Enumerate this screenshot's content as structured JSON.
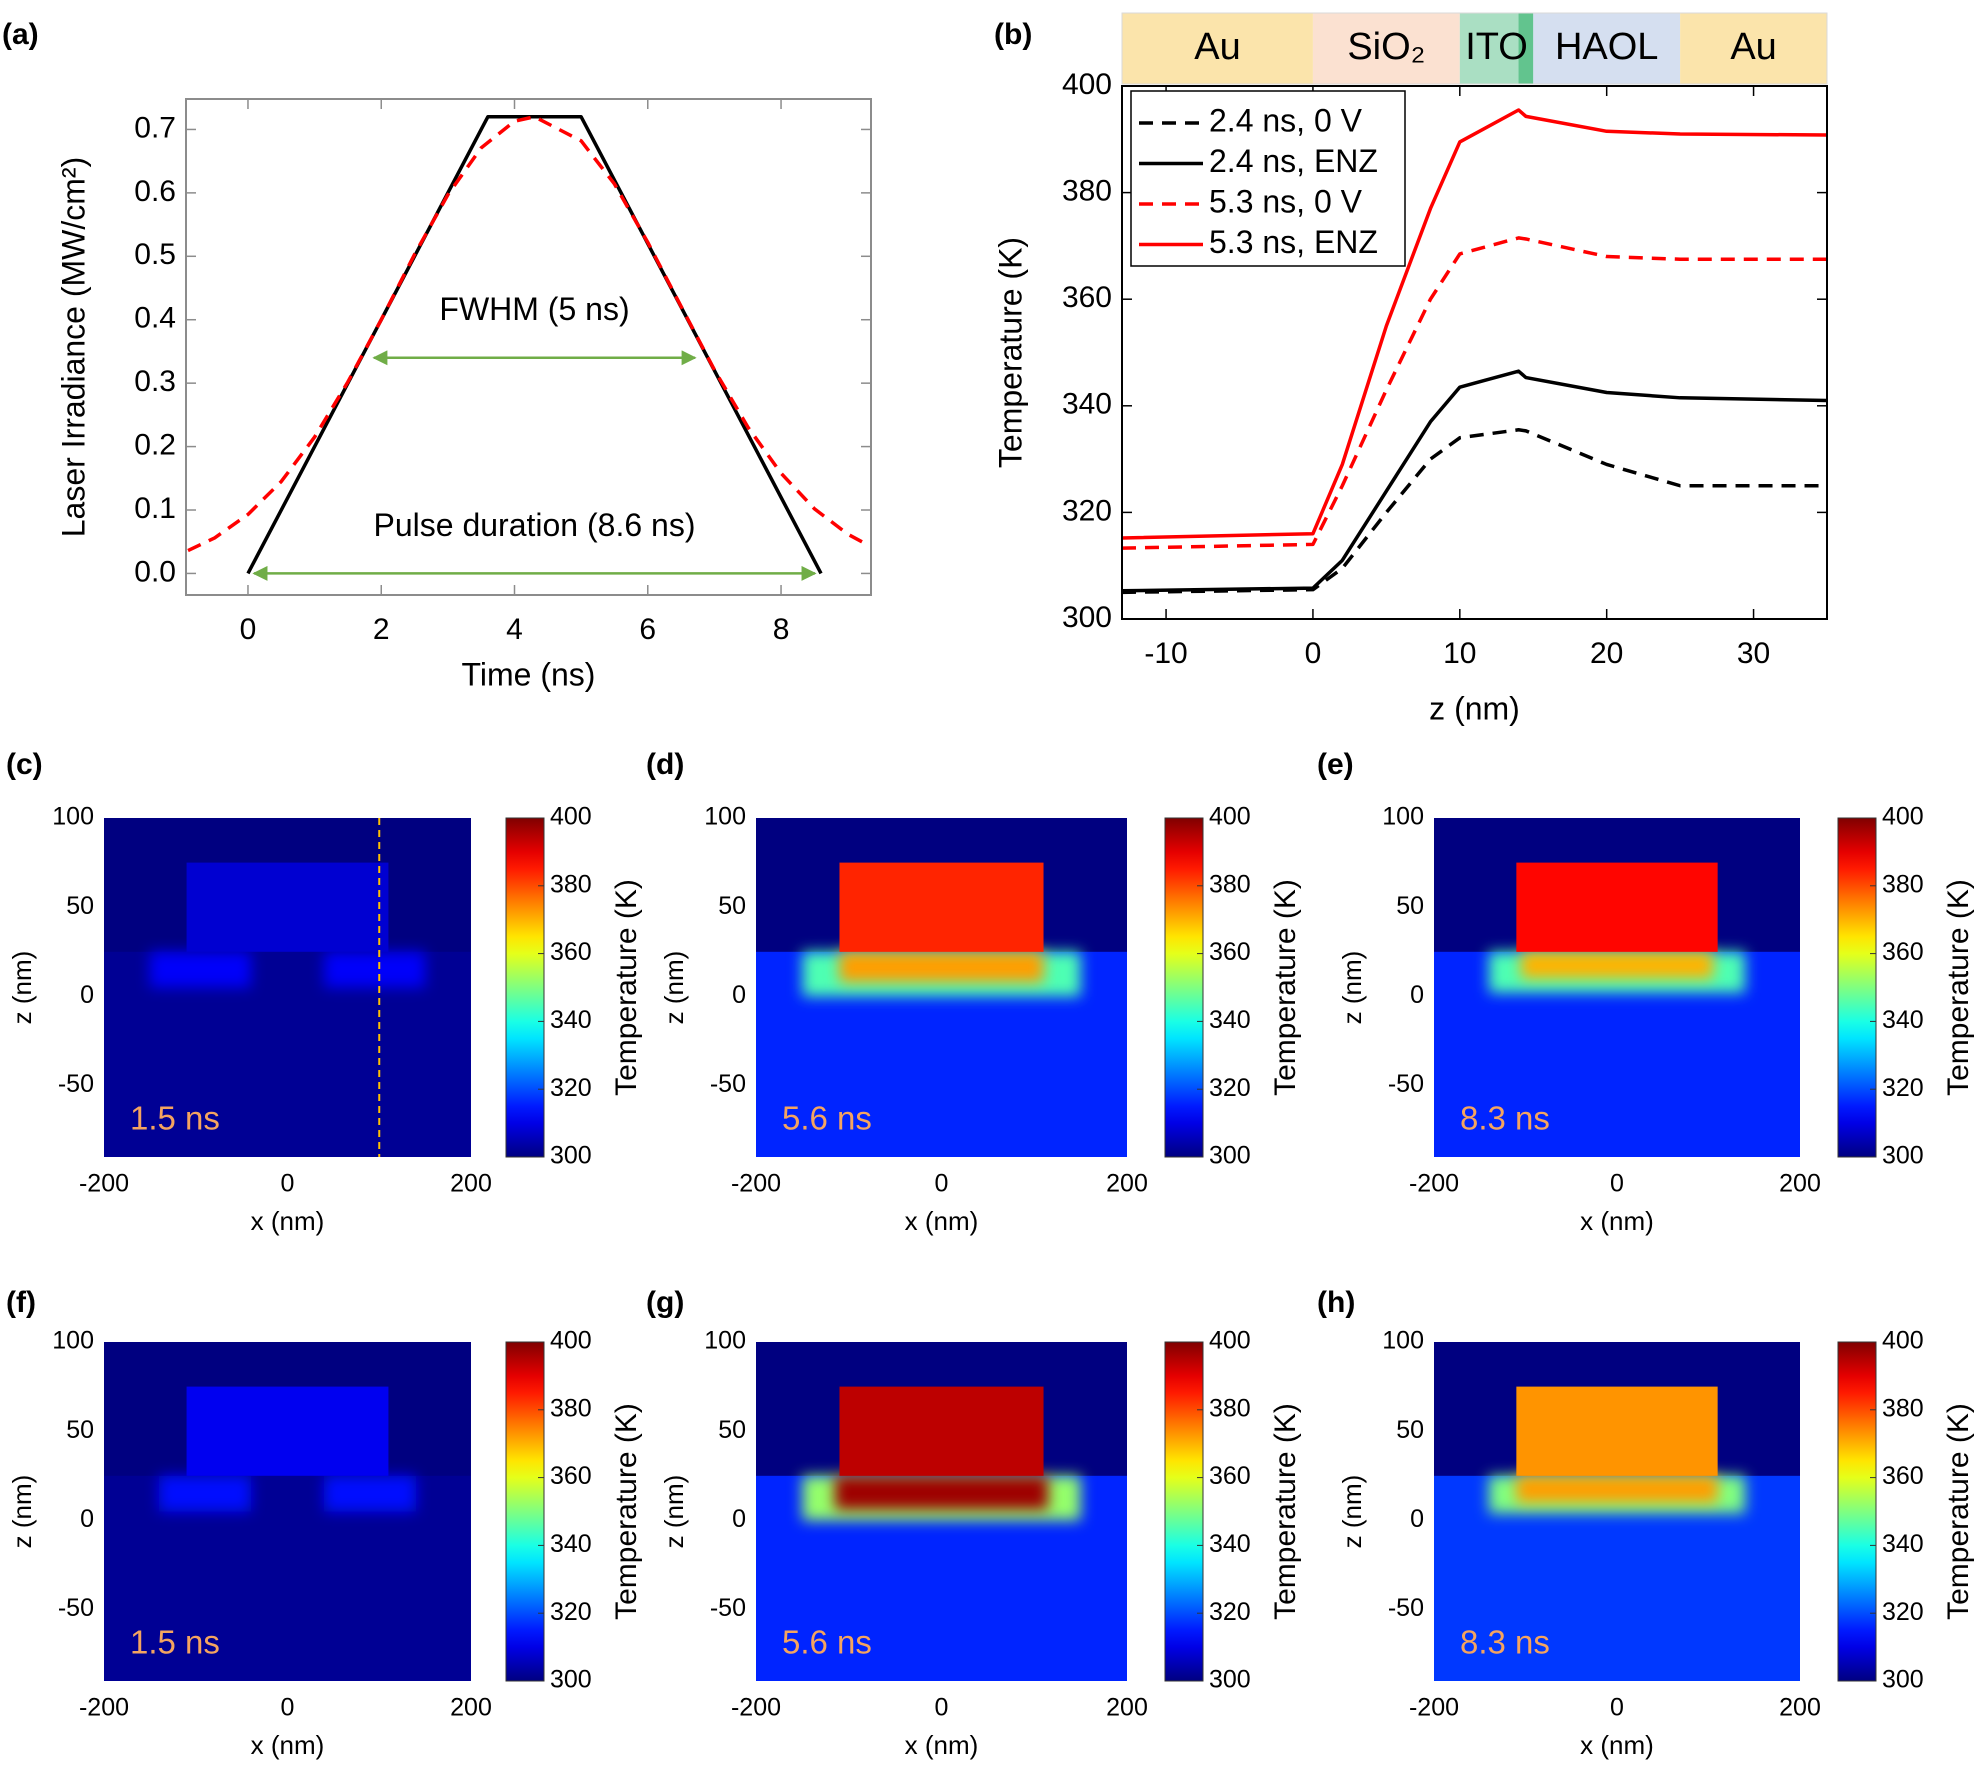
{
  "chart_data": [
    {
      "type": "line",
      "label": "(a)",
      "xlabel": "Time (ns)",
      "ylabel": "Laser Irradiance (MW/cm²)",
      "xlim": [
        -0.93,
        9.35
      ],
      "ylim": [
        -0.034,
        0.748
      ],
      "xticks": [
        0,
        2,
        4,
        6,
        8
      ],
      "yticks": [
        {
          "value": 0,
          "label": "0.0"
        },
        0.1,
        0.2,
        0.3,
        0.4,
        0.5,
        0.6,
        0.7
      ],
      "series": [
        {
          "color": "#000000",
          "line_style": "solid",
          "x": [
            0,
            3.6,
            5,
            8.6
          ],
          "values": [
            0,
            0.72,
            0.72,
            0
          ]
        },
        {
          "color": "#ff0000",
          "line_style": "dashed",
          "x": [
            -0.9,
            -0.5,
            0,
            0.5,
            1,
            1.5,
            2,
            2.5,
            3,
            3.5,
            4,
            4.3,
            5,
            5.5,
            6,
            6.5,
            7,
            7.5,
            8,
            8.5,
            9,
            9.3
          ],
          "values": [
            0.036,
            0.056,
            0.093,
            0.145,
            0.215,
            0.302,
            0.4,
            0.503,
            0.597,
            0.671,
            0.713,
            0.72,
            0.682,
            0.614,
            0.522,
            0.421,
            0.321,
            0.231,
            0.158,
            0.102,
            0.062,
            0.045
          ]
        }
      ],
      "annotations": [
        {
          "text": "FWHM (5 ns)",
          "x": [
            1.8,
            6.8
          ],
          "y": 0.34,
          "color": "#70ad47"
        },
        {
          "text": "Pulse duration (8.6 ns)",
          "x": [
            0,
            8.6
          ],
          "y": 0,
          "color": "#70ad47"
        }
      ]
    },
    {
      "type": "line",
      "label": "(b)",
      "xlabel": "z (nm)",
      "ylabel": "Temperature (K)",
      "xlim": [
        -13,
        35
      ],
      "ylim": [
        300,
        400
      ],
      "xticks": [
        -10,
        0,
        10,
        20,
        30
      ],
      "yticks": [
        300,
        320,
        340,
        360,
        380,
        400
      ],
      "legend": "upper left",
      "x": [
        -13,
        0,
        2,
        5,
        8,
        10,
        14,
        14.5,
        20,
        25,
        35
      ],
      "series": [
        {
          "name": "2.4 ns, 0 V",
          "color": "#000000",
          "line_style": "dashed",
          "values": [
            305,
            305.5,
            309.5,
            320,
            330,
            334,
            335.5,
            335.3,
            329,
            325,
            325
          ]
        },
        {
          "name": "2.4 ns, ENZ",
          "color": "#000000",
          "line_style": "solid",
          "values": [
            305.3,
            305.8,
            311,
            324,
            337,
            343.5,
            346.5,
            345.3,
            342.5,
            341.5,
            341
          ]
        },
        {
          "name": "5.3 ns, 0 V",
          "color": "#ff0000",
          "line_style": "dashed",
          "values": [
            313.3,
            314,
            325,
            343,
            360,
            368.5,
            371.5,
            371.3,
            368,
            367.5,
            367.5
          ]
        },
        {
          "name": "5.3 ns, ENZ",
          "color": "#ff0000",
          "line_style": "solid",
          "values": [
            315.2,
            316,
            329,
            355,
            377,
            389.5,
            395.5,
            394.3,
            391.5,
            391,
            390.8
          ]
        }
      ],
      "layers": [
        {
          "label": "Au",
          "z": [
            -13,
            0
          ],
          "color": "#fbe4ab"
        },
        {
          "label": "SiO₂",
          "z": [
            0,
            10
          ],
          "color": "#fbe1d1"
        },
        {
          "label": "ITO",
          "z": [
            10,
            15
          ],
          "color": "#aadfc3"
        },
        {
          "label": null,
          "z": [
            14,
            15
          ],
          "color": "#62c48e"
        },
        {
          "label": "HAOL",
          "z": [
            15,
            25
          ],
          "color": "#d5dff0"
        },
        {
          "label": "Au",
          "z": [
            25,
            35
          ],
          "color": "#fbe4ab"
        }
      ]
    },
    {
      "type": "heatmap",
      "label": "(c)",
      "annotation": "1.5 ns",
      "annotation_color": "#f4a460",
      "xlabel": "x (nm)",
      "ylabel": "z (nm)",
      "colorbar_label": "Temperature (K)",
      "xlim": [
        -200,
        200
      ],
      "ylim": [
        -90,
        100
      ],
      "xticks": [
        -200,
        0,
        200
      ],
      "yticks": [
        -50,
        0,
        50,
        100
      ],
      "clim": [
        300,
        400
      ],
      "cticks": [
        300,
        320,
        340,
        360,
        380,
        400
      ],
      "colormap": "jet",
      "guide_x": 100,
      "guide_color": "#ffc000",
      "zones": [
        {
          "x": [
            -200,
            200
          ],
          "z": [
            -90,
            100
          ],
          "value": 300
        },
        {
          "x": [
            -200,
            200
          ],
          "z": [
            -90,
            25
          ],
          "value": 302
        },
        {
          "x": [
            -150,
            -40
          ],
          "z": [
            5,
            25
          ],
          "value": 312
        },
        {
          "x": [
            40,
            150
          ],
          "z": [
            5,
            25
          ],
          "value": 312
        },
        {
          "x": [
            -110,
            110
          ],
          "z": [
            25,
            75
          ],
          "value": 308
        }
      ]
    },
    {
      "type": "heatmap",
      "label": "(d)",
      "annotation": "5.6 ns",
      "annotation_color": "#f4a460",
      "xlabel": "x (nm)",
      "ylabel": "z (nm)",
      "colorbar_label": "Temperature (K)",
      "xlim": [
        -200,
        200
      ],
      "ylim": [
        -90,
        100
      ],
      "xticks": [
        -200,
        0,
        200
      ],
      "yticks": [
        -50,
        0,
        50,
        100
      ],
      "clim": [
        300,
        400
      ],
      "cticks": [
        300,
        320,
        340,
        360,
        380,
        400
      ],
      "colormap": "jet",
      "zones": [
        {
          "x": [
            -200,
            200
          ],
          "z": [
            -90,
            100
          ],
          "value": 300
        },
        {
          "x": [
            -200,
            200
          ],
          "z": [
            -90,
            25
          ],
          "value": 316
        },
        {
          "x": [
            -150,
            150
          ],
          "z": [
            0,
            25
          ],
          "value": 345
        },
        {
          "x": [
            -110,
            110
          ],
          "z": [
            8,
            25
          ],
          "value": 372
        },
        {
          "x": [
            -110,
            110
          ],
          "z": [
            25,
            75
          ],
          "value": 384
        }
      ]
    },
    {
      "type": "heatmap",
      "label": "(e)",
      "annotation": "8.3 ns",
      "annotation_color": "#f4a460",
      "xlabel": "x (nm)",
      "ylabel": "z (nm)",
      "colorbar_label": "Temperature (K)",
      "xlim": [
        -200,
        200
      ],
      "ylim": [
        -90,
        100
      ],
      "xticks": [
        -200,
        0,
        200
      ],
      "yticks": [
        -50,
        0,
        50,
        100
      ],
      "clim": [
        300,
        400
      ],
      "cticks": [
        300,
        320,
        340,
        360,
        380,
        400
      ],
      "colormap": "jet",
      "zones": [
        {
          "x": [
            -200,
            200
          ],
          "z": [
            -90,
            100
          ],
          "value": 300
        },
        {
          "x": [
            -200,
            200
          ],
          "z": [
            -90,
            25
          ],
          "value": 316
        },
        {
          "x": [
            -140,
            140
          ],
          "z": [
            2,
            25
          ],
          "value": 345
        },
        {
          "x": [
            -105,
            105
          ],
          "z": [
            10,
            25
          ],
          "value": 370
        },
        {
          "x": [
            -110,
            110
          ],
          "z": [
            25,
            75
          ],
          "value": 387
        }
      ]
    },
    {
      "type": "heatmap",
      "label": "(f)",
      "annotation": "1.5 ns",
      "annotation_color": "#f4a460",
      "xlabel": "x (nm)",
      "ylabel": "z (nm)",
      "colorbar_label": "Temperature (K)",
      "xlim": [
        -200,
        200
      ],
      "ylim": [
        -90,
        100
      ],
      "xticks": [
        -200,
        0,
        200
      ],
      "yticks": [
        -50,
        0,
        50,
        100
      ],
      "clim": [
        300,
        400
      ],
      "cticks": [
        300,
        320,
        340,
        360,
        380,
        400
      ],
      "colormap": "jet",
      "zones": [
        {
          "x": [
            -200,
            200
          ],
          "z": [
            -90,
            100
          ],
          "value": 300
        },
        {
          "x": [
            -200,
            200
          ],
          "z": [
            -90,
            25
          ],
          "value": 302
        },
        {
          "x": [
            -140,
            -40
          ],
          "z": [
            5,
            25
          ],
          "value": 314
        },
        {
          "x": [
            40,
            140
          ],
          "z": [
            5,
            25
          ],
          "value": 314
        },
        {
          "x": [
            -110,
            110
          ],
          "z": [
            25,
            75
          ],
          "value": 311
        }
      ]
    },
    {
      "type": "heatmap",
      "label": "(g)",
      "annotation": "5.6 ns",
      "annotation_color": "#f4a460",
      "xlabel": "x (nm)",
      "ylabel": "z (nm)",
      "colorbar_label": "Temperature (K)",
      "xlim": [
        -200,
        200
      ],
      "ylim": [
        -90,
        100
      ],
      "xticks": [
        -200,
        0,
        200
      ],
      "yticks": [
        -50,
        0,
        50,
        100
      ],
      "clim": [
        300,
        400
      ],
      "cticks": [
        300,
        320,
        340,
        360,
        380,
        400
      ],
      "colormap": "jet",
      "zones": [
        {
          "x": [
            -200,
            200
          ],
          "z": [
            -90,
            100
          ],
          "value": 300
        },
        {
          "x": [
            -200,
            200
          ],
          "z": [
            -90,
            25
          ],
          "value": 316
        },
        {
          "x": [
            -150,
            150
          ],
          "z": [
            0,
            25
          ],
          "value": 352
        },
        {
          "x": [
            -115,
            115
          ],
          "z": [
            6,
            25
          ],
          "value": 397
        },
        {
          "x": [
            -110,
            110
          ],
          "z": [
            25,
            75
          ],
          "value": 394
        }
      ]
    },
    {
      "type": "heatmap",
      "label": "(h)",
      "annotation": "8.3 ns",
      "annotation_color": "#f4a460",
      "xlabel": "x (nm)",
      "ylabel": "z (nm)",
      "colorbar_label": "Temperature (K)",
      "xlim": [
        -200,
        200
      ],
      "ylim": [
        -90,
        100
      ],
      "xticks": [
        -200,
        0,
        200
      ],
      "yticks": [
        -50,
        0,
        50,
        100
      ],
      "clim": [
        300,
        400
      ],
      "cticks": [
        300,
        320,
        340,
        360,
        380,
        400
      ],
      "colormap": "jet",
      "zones": [
        {
          "x": [
            -200,
            200
          ],
          "z": [
            -90,
            100
          ],
          "value": 300
        },
        {
          "x": [
            -200,
            200
          ],
          "z": [
            -90,
            25
          ],
          "value": 318
        },
        {
          "x": [
            -140,
            140
          ],
          "z": [
            4,
            25
          ],
          "value": 350
        },
        {
          "x": [
            -110,
            110
          ],
          "z": [
            10,
            25
          ],
          "value": 372
        },
        {
          "x": [
            -110,
            110
          ],
          "z": [
            25,
            75
          ],
          "value": 373
        }
      ]
    }
  ]
}
